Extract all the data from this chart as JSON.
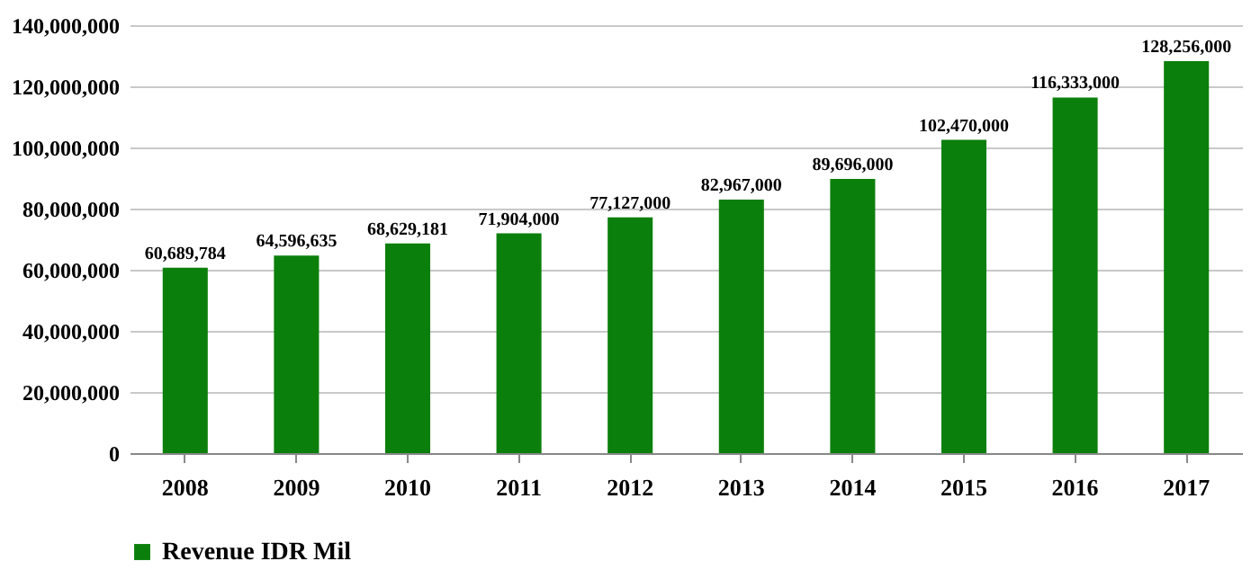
{
  "chart_data": {
    "type": "bar",
    "categories": [
      "2008",
      "2009",
      "2010",
      "2011",
      "2012",
      "2013",
      "2014",
      "2015",
      "2016",
      "2017"
    ],
    "series": [
      {
        "name": "Revenue IDR Mil",
        "color": "#0b7f0b",
        "values": [
          60689784,
          64596635,
          68629181,
          71904000,
          77127000,
          82967000,
          89696000,
          102470000,
          116333000,
          128256000
        ],
        "value_labels": [
          "60,689,784",
          "64,596,635",
          "68,629,181",
          "71,904,000",
          "77,127,000",
          "82,967,000",
          "89,696,000",
          "102,470,000",
          "116,333,000",
          "128,256,000"
        ]
      }
    ],
    "ylim": [
      0,
      140000000
    ],
    "yticks": [
      {
        "value": 0,
        "label": "0"
      },
      {
        "value": 20000000,
        "label": "20,000,000"
      },
      {
        "value": 40000000,
        "label": "40,000,000"
      },
      {
        "value": 60000000,
        "label": "60,000,000"
      },
      {
        "value": 80000000,
        "label": "80,000,000"
      },
      {
        "value": 100000000,
        "label": "100,000,000"
      },
      {
        "value": 120000000,
        "label": "120,000,000"
      },
      {
        "value": 140000000,
        "label": "140,000,000"
      }
    ],
    "grid": "y",
    "legend": "bottom"
  }
}
